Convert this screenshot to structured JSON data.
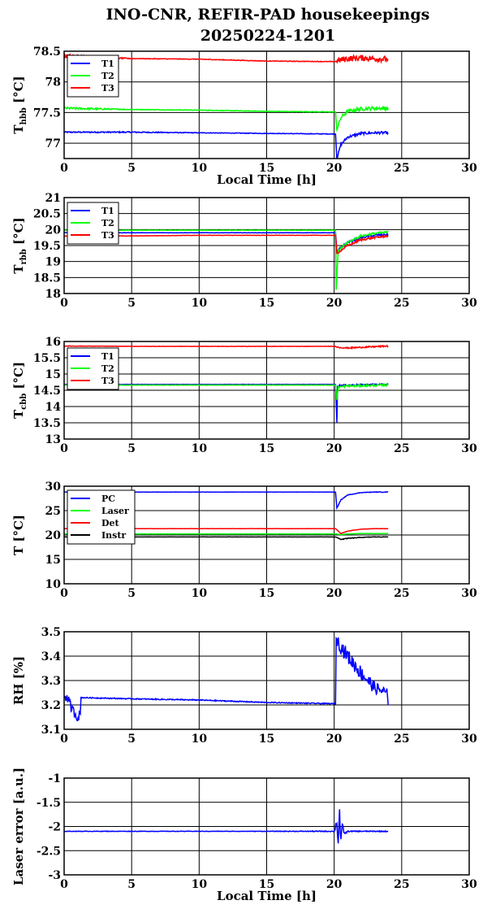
{
  "title": {
    "line1": "INO-CNR, REFIR-PAD housekeepings",
    "line2": "20250224-1201"
  },
  "chart_data": [
    {
      "type": "line",
      "ylabel_main": "T",
      "ylabel_sub": "hbb",
      "ylabel_unit": " [°C]",
      "xlabel": "Local Time [h]",
      "xlim": [
        0,
        30
      ],
      "xticks": [
        0,
        5,
        10,
        15,
        20,
        25,
        30
      ],
      "ylim": [
        76.75,
        78.5
      ],
      "yticks": [
        77,
        77.5,
        78,
        78.5
      ],
      "grid": true,
      "legend_position": "top-left",
      "series": [
        {
          "name": "T1",
          "color": "#0000ff",
          "x": [
            0,
            5,
            10,
            15,
            20.1,
            20.2,
            20.5,
            21,
            22,
            23,
            24
          ],
          "y": [
            77.18,
            77.18,
            77.17,
            77.16,
            77.15,
            76.75,
            76.98,
            77.1,
            77.16,
            77.17,
            77.17
          ],
          "noise": [
            0.01,
            0.01,
            0.005,
            0.005,
            0.005,
            0.02,
            0.02,
            0.02,
            0.02,
            0.02,
            0.02
          ]
        },
        {
          "name": "T2",
          "color": "#00ff00",
          "x": [
            0,
            5,
            10,
            15,
            20.1,
            20.2,
            20.5,
            21,
            22,
            23,
            24
          ],
          "y": [
            77.57,
            77.55,
            77.54,
            77.52,
            77.51,
            77.22,
            77.42,
            77.52,
            77.56,
            77.57,
            77.57
          ],
          "noise": [
            0.02,
            0.005,
            0.005,
            0.005,
            0.005,
            0.02,
            0.03,
            0.03,
            0.03,
            0.03,
            0.03
          ]
        },
        {
          "name": "T3",
          "color": "#ff0000",
          "x": [
            0,
            5,
            10,
            15,
            20.1,
            20.3,
            21,
            22,
            23,
            24
          ],
          "y": [
            78.42,
            78.38,
            78.37,
            78.34,
            78.33,
            78.35,
            78.38,
            78.39,
            78.38,
            78.37
          ],
          "noise": [
            0.04,
            0.005,
            0.005,
            0.005,
            0.005,
            0.05,
            0.05,
            0.05,
            0.05,
            0.05
          ]
        }
      ]
    },
    {
      "type": "line",
      "ylabel_main": "T",
      "ylabel_sub": "rbb",
      "ylabel_unit": " [°C]",
      "xlabel": "",
      "xlim": [
        0,
        30
      ],
      "xticks": [
        0,
        5,
        10,
        15,
        20,
        25,
        30
      ],
      "ylim": [
        18,
        21
      ],
      "yticks": [
        18,
        18.5,
        19,
        19.5,
        20,
        20.5,
        21
      ],
      "grid": true,
      "legend_position": "top-left",
      "series": [
        {
          "name": "T1",
          "color": "#0000ff",
          "x": [
            0,
            5,
            10,
            15,
            20.1,
            20.2,
            20.5,
            21,
            22,
            23,
            24
          ],
          "y": [
            19.9,
            19.9,
            19.9,
            19.9,
            19.9,
            19.3,
            19.45,
            19.6,
            19.75,
            19.82,
            19.85
          ],
          "noise": [
            0.01,
            0.005,
            0.005,
            0.005,
            0.005,
            0.02,
            0.03,
            0.03,
            0.03,
            0.03,
            0.03
          ]
        },
        {
          "name": "T2",
          "color": "#00ff00",
          "x": [
            0,
            5,
            10,
            15,
            20.1,
            20.15,
            20.3,
            21,
            22,
            23,
            24
          ],
          "y": [
            19.98,
            19.98,
            19.98,
            19.98,
            19.98,
            18.1,
            19.35,
            19.6,
            19.8,
            19.88,
            19.92
          ],
          "noise": [
            0.01,
            0.005,
            0.005,
            0.005,
            0.005,
            0.02,
            0.03,
            0.03,
            0.03,
            0.03,
            0.03
          ]
        },
        {
          "name": "T3",
          "color": "#ff0000",
          "x": [
            0,
            5,
            10,
            15,
            20.1,
            20.2,
            20.5,
            21,
            22,
            23,
            24
          ],
          "y": [
            19.8,
            19.8,
            19.82,
            19.82,
            19.82,
            19.25,
            19.35,
            19.5,
            19.68,
            19.75,
            19.8
          ],
          "noise": [
            0.01,
            0.005,
            0.005,
            0.005,
            0.005,
            0.03,
            0.03,
            0.03,
            0.03,
            0.03,
            0.03
          ]
        }
      ]
    },
    {
      "type": "line",
      "ylabel_main": "T",
      "ylabel_sub": "cbb",
      "ylabel_unit": " [°C]",
      "xlabel": "",
      "xlim": [
        0,
        30
      ],
      "xticks": [
        0,
        5,
        10,
        15,
        20,
        25,
        30
      ],
      "ylim": [
        13,
        16
      ],
      "yticks": [
        13,
        13.5,
        14,
        14.5,
        15,
        15.5,
        16
      ],
      "grid": true,
      "legend_position": "top-left",
      "series": [
        {
          "name": "T1",
          "color": "#0000ff",
          "x": [
            0,
            5,
            10,
            15,
            20.1,
            20.2,
            20.25,
            20.4,
            21,
            22,
            23,
            24
          ],
          "y": [
            14.68,
            14.68,
            14.68,
            14.68,
            14.68,
            13.5,
            14.6,
            14.65,
            14.66,
            14.67,
            14.68,
            14.68
          ],
          "noise": [
            0.005,
            0.005,
            0.005,
            0.005,
            0.005,
            0,
            0.02,
            0.02,
            0.02,
            0.02,
            0.02,
            0.02
          ]
        },
        {
          "name": "T2",
          "color": "#00ff00",
          "x": [
            0,
            5,
            10,
            15,
            20.1,
            20.2,
            20.3,
            21,
            22,
            23,
            24
          ],
          "y": [
            14.66,
            14.66,
            14.66,
            14.66,
            14.66,
            14.2,
            14.6,
            14.63,
            14.64,
            14.65,
            14.66
          ],
          "noise": [
            0.005,
            0.005,
            0.005,
            0.005,
            0.005,
            0,
            0.03,
            0.03,
            0.03,
            0.03,
            0.03
          ]
        },
        {
          "name": "T3",
          "color": "#ff0000",
          "x": [
            0,
            5,
            10,
            15,
            20.1,
            20.3,
            21,
            22,
            23,
            24
          ],
          "y": [
            15.86,
            15.85,
            15.85,
            15.85,
            15.85,
            15.82,
            15.8,
            15.82,
            15.84,
            15.86
          ],
          "noise": [
            0.01,
            0.005,
            0.005,
            0.005,
            0.005,
            0.02,
            0.02,
            0.02,
            0.02,
            0.02
          ]
        }
      ]
    },
    {
      "type": "line",
      "ylabel_main": "T [°C]",
      "ylabel_sub": "",
      "ylabel_unit": "",
      "xlabel": "",
      "xlim": [
        0,
        30
      ],
      "xticks": [
        0,
        5,
        10,
        15,
        20,
        25,
        30
      ],
      "ylim": [
        10,
        30
      ],
      "yticks": [
        10,
        15,
        20,
        25,
        30
      ],
      "grid": true,
      "legend_position": "top-left",
      "series": [
        {
          "name": "PC",
          "color": "#0000ff",
          "x": [
            0,
            5,
            10,
            15,
            20.1,
            20.2,
            20.5,
            21,
            22,
            23,
            24
          ],
          "y": [
            28.8,
            28.8,
            28.8,
            28.8,
            28.8,
            25.5,
            27.2,
            28.2,
            28.7,
            28.8,
            28.8
          ],
          "noise": [
            0.02,
            0.02,
            0.02,
            0.02,
            0.02,
            0.05,
            0.05,
            0.05,
            0.05,
            0.05,
            0.05
          ]
        },
        {
          "name": "Laser",
          "color": "#00ff00",
          "x": [
            0,
            5,
            10,
            15,
            20.1,
            20.5,
            21,
            22,
            23,
            24
          ],
          "y": [
            20.2,
            20.2,
            20.2,
            20.2,
            20.2,
            20.1,
            20.2,
            20.3,
            20.3,
            20.3
          ],
          "noise": [
            0.02,
            0.02,
            0.02,
            0.02,
            0.02,
            0.03,
            0.03,
            0.03,
            0.03,
            0.03
          ]
        },
        {
          "name": "Det",
          "color": "#ff0000",
          "x": [
            0,
            5,
            10,
            15,
            20.1,
            20.5,
            21,
            22,
            23,
            24
          ],
          "y": [
            21.3,
            21.3,
            21.3,
            21.3,
            21.3,
            20.3,
            20.8,
            21.2,
            21.3,
            21.3
          ],
          "noise": [
            0.02,
            0.02,
            0.02,
            0.02,
            0.02,
            0.03,
            0.03,
            0.03,
            0.03,
            0.03
          ]
        },
        {
          "name": "Instr",
          "color": "#000000",
          "x": [
            0,
            5,
            10,
            15,
            20.1,
            20.5,
            21,
            22,
            23,
            24
          ],
          "y": [
            19.6,
            19.6,
            19.6,
            19.6,
            19.6,
            19.1,
            19.3,
            19.5,
            19.6,
            19.6
          ],
          "noise": [
            0.02,
            0.02,
            0.02,
            0.02,
            0.02,
            0.08,
            0.08,
            0.05,
            0.05,
            0.05
          ]
        }
      ]
    },
    {
      "type": "line",
      "ylabel_main": "RH [%]",
      "ylabel_sub": "",
      "ylabel_unit": "",
      "xlabel": "",
      "xlim": [
        0,
        30
      ],
      "xticks": [
        0,
        5,
        10,
        15,
        20,
        25,
        30
      ],
      "ylim": [
        3.1,
        3.5
      ],
      "yticks": [
        3.1,
        3.2,
        3.3,
        3.4,
        3.5
      ],
      "grid": true,
      "legend_position": "none",
      "series": [
        {
          "name": "",
          "color": "#0000ff",
          "x": [
            0,
            0.3,
            0.6,
            1.0,
            1.2,
            1.25,
            5,
            10,
            15,
            20.1,
            20.15,
            20.5,
            21,
            22,
            23,
            23.9,
            24
          ],
          "y": [
            3.24,
            3.22,
            3.18,
            3.15,
            3.16,
            3.23,
            3.225,
            3.22,
            3.21,
            3.205,
            3.47,
            3.44,
            3.4,
            3.33,
            3.27,
            3.25,
            3.2
          ],
          "noise": [
            0.015,
            0.02,
            0.02,
            0.02,
            0.015,
            0.002,
            0.002,
            0.002,
            0.002,
            0.002,
            0.02,
            0.03,
            0.03,
            0.03,
            0.025,
            0.02,
            0.01
          ]
        }
      ]
    },
    {
      "type": "line",
      "ylabel_main": "Laser error [a.u.]",
      "ylabel_sub": "",
      "ylabel_unit": "",
      "xlabel": "Local Time [h]",
      "xlim": [
        0,
        30
      ],
      "xticks": [
        0,
        5,
        10,
        15,
        20,
        25,
        30
      ],
      "ylim": [
        -3,
        -1
      ],
      "yticks": [
        -3,
        -2.5,
        -2,
        -1.5,
        -1
      ],
      "grid": true,
      "legend_position": "none",
      "series": [
        {
          "name": "",
          "color": "#0000ff",
          "x": [
            0,
            5,
            10,
            15,
            20.0,
            20.2,
            20.3,
            20.4,
            20.5,
            20.6,
            20.8,
            21,
            22,
            23,
            24
          ],
          "y": [
            -2.1,
            -2.1,
            -2.1,
            -2.1,
            -2.1,
            -1.9,
            -2.3,
            -1.7,
            -2.4,
            -2.0,
            -2.15,
            -2.1,
            -2.1,
            -2.1,
            -2.1
          ],
          "noise": [
            0.005,
            0.005,
            0.005,
            0.005,
            0.01,
            0.15,
            0.15,
            0.15,
            0.15,
            0.08,
            0.03,
            0.01,
            0.01,
            0.01,
            0.01
          ]
        }
      ]
    }
  ]
}
